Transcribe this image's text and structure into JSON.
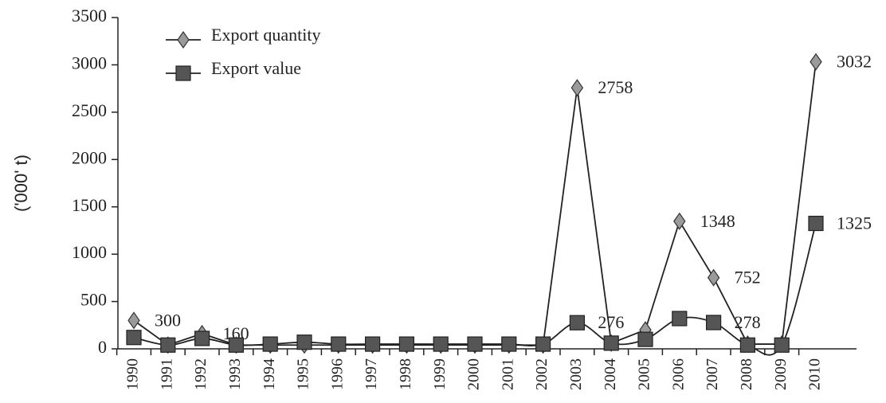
{
  "chart_data": {
    "type": "line",
    "y_label": "('000' t)",
    "categories": [
      "1990",
      "1991",
      "1992",
      "1993",
      "1994",
      "1995",
      "1996",
      "1997",
      "1998",
      "1999",
      "2000",
      "2001",
      "2002",
      "2003",
      "2004",
      "2005",
      "2006",
      "2007",
      "2008",
      "2009",
      "2010"
    ],
    "series": [
      {
        "name": "Export quantity",
        "color": "#9a9a9a",
        "marker": "diamond",
        "smooth": false,
        "values": [
          300,
          40,
          160,
          40,
          40,
          40,
          40,
          40,
          40,
          40,
          40,
          40,
          40,
          2758,
          60,
          200,
          1348,
          752,
          50,
          50,
          3032
        ],
        "value_labels": [
          "300",
          null,
          "160",
          null,
          null,
          null,
          null,
          null,
          null,
          null,
          null,
          null,
          null,
          "2758",
          null,
          null,
          "1348",
          "752",
          null,
          null,
          "3032"
        ]
      },
      {
        "name": "Export value",
        "color": "#555555",
        "marker": "square",
        "smooth": true,
        "values": [
          120,
          40,
          110,
          40,
          50,
          70,
          50,
          50,
          50,
          50,
          50,
          50,
          50,
          276,
          60,
          100,
          320,
          278,
          40,
          40,
          1325
        ],
        "value_labels": [
          null,
          null,
          null,
          null,
          null,
          null,
          null,
          null,
          null,
          null,
          null,
          null,
          null,
          "276",
          null,
          null,
          null,
          "278",
          null,
          null,
          "1325"
        ]
      }
    ],
    "ylim": [
      0,
      3500
    ],
    "yticks": [
      0,
      500,
      1000,
      1500,
      2000,
      2500,
      3000,
      3500
    ],
    "grid": false
  }
}
